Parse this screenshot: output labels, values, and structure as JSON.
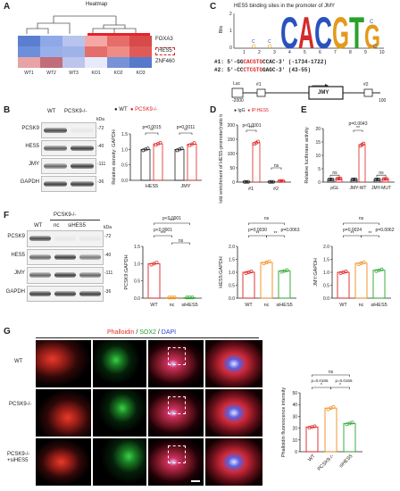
{
  "panels": {
    "A": {
      "label": "A",
      "title": "Heatmap",
      "genes": [
        "FOXA3",
        "HES5",
        "ZNF460"
      ],
      "samples": [
        "WT1",
        "WT2",
        "WT3",
        "KO1",
        "KO2",
        "KO3"
      ],
      "colors": [
        [
          "#5b7fd0",
          "#8fa8e8",
          "#b7c4ee",
          "#f4a7a3",
          "#e66d6a",
          "#d84a4a"
        ],
        [
          "#6c8fdc",
          "#98b0ea",
          "#9fb3e8",
          "#e56d6b",
          "#f08c86",
          "#e05b58"
        ],
        [
          "#e8a3a6",
          "#bf6e7a",
          "#bcc6ec",
          "#e6eafa",
          "#7892d8",
          "#5779cc"
        ]
      ]
    },
    "B": {
      "label": "B",
      "lanes": [
        "WT",
        "PCSK9-/-"
      ],
      "rows": [
        "PCSK9",
        "HES5",
        "JMY",
        "GAPDH"
      ],
      "kda": [
        "kDa",
        "72",
        "40",
        "111",
        "36"
      ],
      "legend": [
        "WT",
        "PCSK9-/-"
      ],
      "pvals": [
        "p=0.0015",
        "p=0.0011"
      ],
      "sig": [
        "**",
        "**"
      ]
    },
    "C": {
      "label": "C",
      "title": "HES5 binding sites in the promoter of JMY",
      "logo_ylabel": "Bits",
      "logo_yticks": [
        "2",
        "1",
        "0"
      ],
      "logo_xticks": [
        "1",
        "2",
        "3",
        "4",
        "5",
        "6",
        "7",
        "8",
        "9",
        "10"
      ],
      "site1_label": "#1:",
      "site1_prefix": "5'-GG",
      "site1_motif": "CACGTG",
      "site1_suffix": "CCAC-3' (-1734-1722)",
      "site2_label": "#2:",
      "site2_prefix": "5'-CC",
      "site2_motif": "CTCGTG",
      "site2_suffix": "GAGC-3' (43-55)",
      "luc": "Luc",
      "site_tags": [
        "#1",
        "#2"
      ],
      "gene": "JMY",
      "coord_left": "-2000",
      "coord_right": "100"
    },
    "D": {
      "label": "D",
      "legend": [
        "IgG",
        "IP:HES5"
      ],
      "pval": "p<0.0001",
      "sig": [
        "***",
        "ns"
      ],
      "categories": [
        "#1",
        "#2"
      ]
    },
    "E": {
      "label": "E",
      "pval": "p=0.0043",
      "sig": [
        "ns",
        "**",
        "ns"
      ],
      "categories": [
        "pGL",
        "JMY-WT",
        "JMY-MUT"
      ]
    },
    "F": {
      "label": "F",
      "group_label": "PCSK9-/-",
      "lanes": [
        "WT",
        "nc",
        "siHES5"
      ],
      "rows": [
        "PCSK9",
        "HES5",
        "JMY",
        "GAPDH"
      ],
      "kda": [
        "kDa",
        "72",
        "40",
        "111",
        "36"
      ],
      "pvals_pcsk9": [
        "p<0.0001",
        "p<0.0001"
      ],
      "sig_pcsk9": [
        "***",
        "***",
        "ns"
      ],
      "pvals_hes5": [
        "p=0.0030",
        "p=0.0063"
      ],
      "sig_hes5": [
        "ns",
        "**",
        "**"
      ],
      "pvals_jmy": [
        "p=0.0024",
        "p=0.0062"
      ],
      "sig_jmy": [
        "ns",
        "**",
        "**"
      ]
    },
    "G": {
      "label": "G",
      "stains": [
        "Phalloidin",
        "SOX2",
        "DAPI"
      ],
      "stain_sep": "/",
      "stain_colors": [
        "#e0301e",
        "#27a32b",
        "#2f3fd0"
      ],
      "rows": [
        "WT",
        "PCSK9-/-",
        "PCSK9-/- +siHES5"
      ],
      "pvals": [
        "p=0.0185",
        "p=0.0166"
      ],
      "sig": [
        "ns",
        "*",
        "*"
      ],
      "categories": [
        "WT",
        "PCSK9-/-",
        "siHES5"
      ]
    }
  },
  "chart_data": [
    {
      "id": "B-quant",
      "type": "bar",
      "ylabel": "Relative density: GAPDH",
      "categories": [
        "HES5",
        "JMY"
      ],
      "series": [
        {
          "name": "WT",
          "values": [
            1.0,
            1.0
          ]
        },
        {
          "name": "PCSK9-/-",
          "values": [
            1.18,
            1.17
          ]
        }
      ],
      "ylim": [
        0,
        1.5
      ],
      "yticks": [
        "0.0",
        "0.5",
        "1.0",
        "1.5"
      ]
    },
    {
      "id": "D-chip",
      "type": "bar",
      "ylabel": "Fold enrichment of HES5-promoter(ratio to IgG)",
      "categories": [
        "#1",
        "#2"
      ],
      "series": [
        {
          "name": "IgG",
          "values": [
            1.0,
            1.0
          ]
        },
        {
          "name": "IP:HES5",
          "values": [
            138,
            4
          ]
        }
      ],
      "ylim": [
        0,
        200
      ],
      "yticks": [
        "0",
        "50",
        "100",
        "150",
        "200"
      ]
    },
    {
      "id": "E-luciferase",
      "type": "bar",
      "ylabel": "Relative luciferase activity",
      "categories": [
        "pGL",
        "JMY-WT",
        "JMY-MUT"
      ],
      "series": [
        {
          "name": "",
          "values": [
            1.0,
            1.0,
            1.0
          ]
        },
        {
          "name": "",
          "values": [
            1.3,
            14.0,
            1.2
          ]
        }
      ],
      "ylim": [
        0,
        20
      ],
      "yticks": [
        "0",
        "5",
        "10",
        "15",
        "20"
      ]
    },
    {
      "id": "F-pcsk9",
      "type": "bar",
      "ylabel": "PCSK9:GAPDH",
      "categories": [
        "WT",
        "nc",
        "siHES5"
      ],
      "values": [
        1.0,
        0.01,
        0.01
      ],
      "ylim": [
        0,
        1.5
      ],
      "yticks": [
        "0.0",
        "0.5",
        "1.0",
        "1.5"
      ]
    },
    {
      "id": "F-hes5",
      "type": "bar",
      "ylabel": "HES5:GAPDH",
      "categories": [
        "WT",
        "nc",
        "siHES5"
      ],
      "values": [
        1.0,
        1.38,
        1.05
      ],
      "ylim": [
        0,
        2.0
      ],
      "yticks": [
        "0.0",
        "0.5",
        "1.0",
        "1.5",
        "2.0"
      ]
    },
    {
      "id": "F-jmy",
      "type": "bar",
      "ylabel": "JMY:GAPDH",
      "categories": [
        "WT",
        "nc",
        "siHES5"
      ],
      "values": [
        1.0,
        1.35,
        1.08
      ],
      "ylim": [
        0,
        2.0
      ],
      "yticks": [
        "0.0",
        "0.5",
        "1.0",
        "1.5",
        "2.0"
      ]
    },
    {
      "id": "G-phalloidin",
      "type": "bar",
      "ylabel": "Phalloidin fluorescence intensity",
      "categories": [
        "WT",
        "PCSK9-/-",
        "siHES5"
      ],
      "values": [
        21,
        37,
        24
      ],
      "ylim": [
        0,
        50
      ],
      "yticks": [
        "0",
        "10",
        "20",
        "30",
        "40",
        "50"
      ]
    }
  ]
}
